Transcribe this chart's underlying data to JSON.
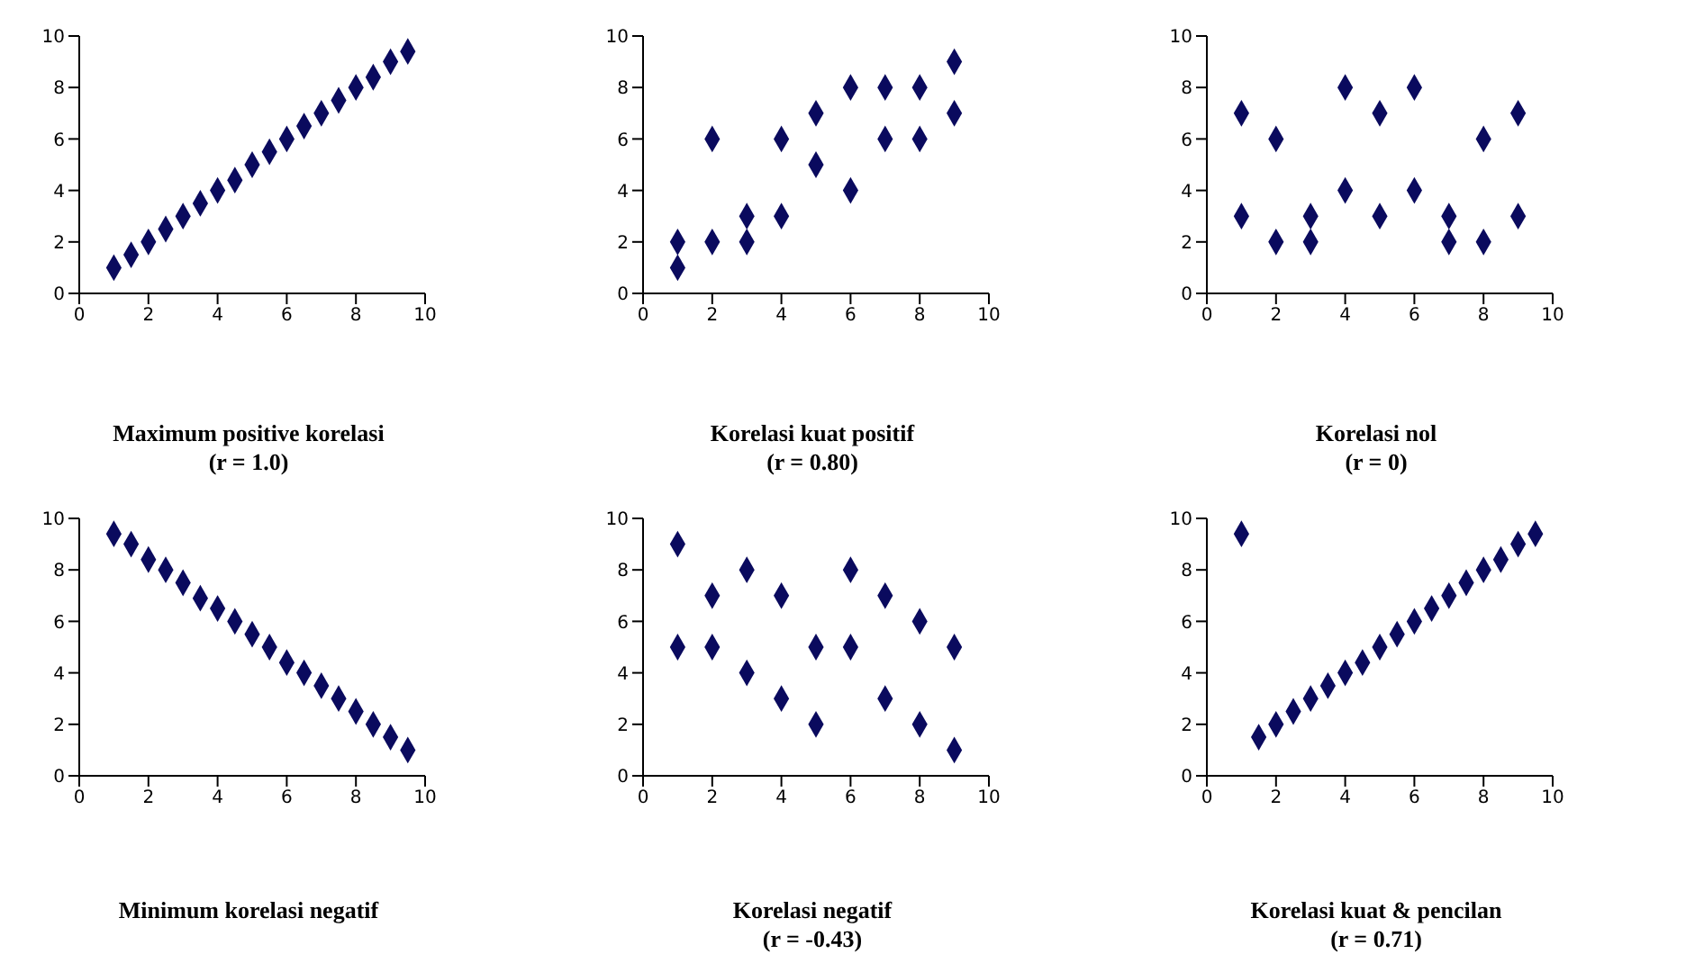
{
  "chart_data": [
    {
      "type": "scatter",
      "title": "Maximum positive korelasi",
      "subtitle": "(r = 1.0)",
      "x": [
        1,
        1.5,
        2,
        2.5,
        3,
        3.5,
        4,
        4.5,
        5,
        5.5,
        6,
        6.5,
        7,
        7.5,
        8,
        8.5,
        9,
        9.5
      ],
      "values": [
        1,
        1.5,
        2,
        2.5,
        3,
        3.5,
        4,
        4.4,
        5,
        5.5,
        6,
        6.5,
        7,
        7.5,
        8,
        8.4,
        9,
        9.4
      ],
      "color": "#0a0a5e",
      "marker": "diamond",
      "xlim": [
        0,
        10
      ],
      "ylim": [
        0,
        10
      ],
      "xticks": [
        0,
        2,
        4,
        6,
        8,
        10
      ],
      "yticks": [
        0,
        2,
        4,
        6,
        8,
        10
      ],
      "grid": false
    },
    {
      "type": "scatter",
      "title": "Korelasi kuat positif",
      "subtitle": "(r = 0.80)",
      "x": [
        1,
        1,
        2,
        2,
        3,
        3,
        4,
        4,
        5,
        5,
        6,
        6,
        7,
        7,
        8,
        8,
        9,
        9
      ],
      "values": [
        2,
        1,
        2,
        6,
        3,
        2,
        6,
        3,
        7,
        5,
        8,
        4,
        8,
        6,
        8,
        6,
        9,
        7
      ],
      "color": "#0a0a5e",
      "marker": "diamond",
      "xlim": [
        0,
        10
      ],
      "ylim": [
        0,
        10
      ],
      "xticks": [
        0,
        2,
        4,
        6,
        8,
        10
      ],
      "yticks": [
        0,
        2,
        4,
        6,
        8,
        10
      ],
      "grid": false
    },
    {
      "type": "scatter",
      "title": "Korelasi nol",
      "subtitle": "(r = 0)",
      "x": [
        1,
        1,
        2,
        2,
        3,
        3,
        4,
        4,
        5,
        5,
        6,
        6,
        7,
        7,
        8,
        8,
        9,
        9
      ],
      "values": [
        7,
        3,
        6,
        2,
        3,
        2,
        8,
        4,
        7,
        3,
        8,
        4,
        3,
        2,
        6,
        2,
        7,
        3
      ],
      "color": "#0a0a5e",
      "marker": "diamond",
      "xlim": [
        0,
        10
      ],
      "ylim": [
        0,
        10
      ],
      "xticks": [
        0,
        2,
        4,
        6,
        8,
        10
      ],
      "yticks": [
        0,
        2,
        4,
        6,
        8,
        10
      ],
      "grid": false
    },
    {
      "type": "scatter",
      "title": "Minimum korelasi negatif",
      "x": [
        1,
        1.5,
        2,
        2.5,
        3,
        3.5,
        4,
        4.5,
        5,
        5.5,
        6,
        6.5,
        7,
        7.5,
        8,
        8.5,
        9,
        9.5
      ],
      "values": [
        9.4,
        9,
        8.4,
        8,
        7.5,
        6.9,
        6.5,
        6,
        5.5,
        5,
        4.4,
        4,
        3.5,
        3,
        2.5,
        2,
        1.5,
        1
      ],
      "color": "#0a0a5e",
      "marker": "diamond",
      "xlim": [
        0,
        10
      ],
      "ylim": [
        0,
        10
      ],
      "xticks": [
        0,
        2,
        4,
        6,
        8,
        10
      ],
      "yticks": [
        0,
        2,
        4,
        6,
        8,
        10
      ],
      "grid": false
    },
    {
      "type": "scatter",
      "title": "Korelasi negatif",
      "subtitle": "(r = -0.43)",
      "x": [
        1,
        1,
        2,
        2,
        3,
        3,
        4,
        4,
        5,
        5,
        6,
        6,
        7,
        7,
        8,
        8,
        9,
        9
      ],
      "values": [
        9,
        5,
        7,
        5,
        8,
        4,
        7,
        3,
        5,
        2,
        8,
        5,
        7,
        3,
        6,
        2,
        5,
        1
      ],
      "color": "#0a0a5e",
      "marker": "diamond",
      "xlim": [
        0,
        10
      ],
      "ylim": [
        0,
        10
      ],
      "xticks": [
        0,
        2,
        4,
        6,
        8,
        10
      ],
      "yticks": [
        0,
        2,
        4,
        6,
        8,
        10
      ],
      "grid": false
    },
    {
      "type": "scatter",
      "title": "Korelasi kuat & pencilan",
      "subtitle": "(r = 0.71)",
      "x": [
        1,
        1.5,
        2,
        2.5,
        3,
        3.5,
        4,
        4.5,
        5,
        5.5,
        6,
        6.5,
        7,
        7.5,
        8,
        8.5,
        9,
        9.5
      ],
      "values": [
        9.4,
        1.5,
        2,
        2.5,
        3,
        3.5,
        4,
        4.4,
        5,
        5.5,
        6,
        6.5,
        7,
        7.5,
        8,
        8.4,
        9,
        9.4
      ],
      "color": "#0a0a5e",
      "marker": "diamond",
      "xlim": [
        0,
        10
      ],
      "ylim": [
        0,
        10
      ],
      "xticks": [
        0,
        2,
        4,
        6,
        8,
        10
      ],
      "yticks": [
        0,
        2,
        4,
        6,
        8,
        10
      ],
      "grid": false
    }
  ]
}
